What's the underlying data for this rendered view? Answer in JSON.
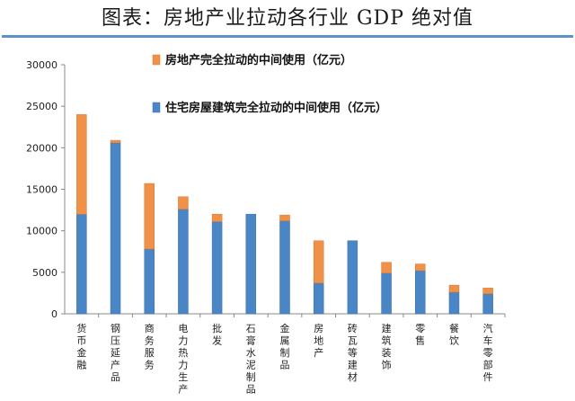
{
  "title": "图表：房地产业拉动各行业 GDP 绝对值",
  "colors": {
    "residential": "#4a86c6",
    "realestate": "#f0914a",
    "rule": "#5a93c8"
  },
  "chart_data": {
    "type": "bar",
    "stacked": true,
    "categories": [
      "货币金融",
      "钢压延产品",
      "商务服务",
      "电力热力生产",
      "批发",
      "石膏水泥制品",
      "金属制品",
      "房地产",
      "砖瓦等建材",
      "建筑装饰",
      "零售",
      "餐饮",
      "汽车零部件"
    ],
    "series": [
      {
        "name": "住宅房屋建筑完全拉动的中间使用（亿元）",
        "values": [
          12000,
          20600,
          7800,
          12600,
          11100,
          12000,
          11200,
          3700,
          8800,
          4900,
          5200,
          2600,
          2400
        ]
      },
      {
        "name": "房地产完全拉动的中间使用（亿元）",
        "values": [
          12000,
          300,
          7900,
          1500,
          900,
          0,
          700,
          5100,
          0,
          1300,
          800,
          850,
          700
        ]
      }
    ],
    "ylim": [
      0,
      30000
    ],
    "yticks": [
      "0",
      "5000",
      "10000",
      "15000",
      "20000",
      "25000",
      "30000"
    ],
    "legend": "top-right",
    "grid": false
  }
}
